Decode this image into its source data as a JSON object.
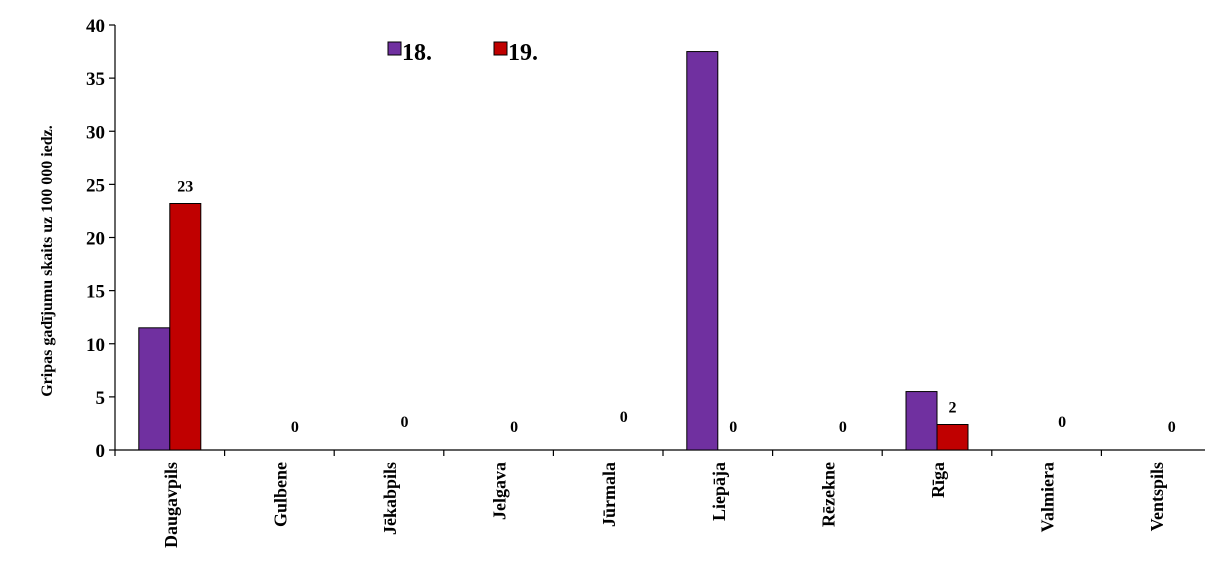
{
  "chart_data": {
    "type": "bar",
    "categories": [
      "Daugavpils",
      "Gulbene",
      "Jēkabpils",
      "Jelgava",
      "Jūrmala",
      "Liepāja",
      "Rēzekne",
      "Rīga",
      "Valmiera",
      "Ventspils"
    ],
    "series": [
      {
        "name": "18.",
        "color": "#7030a0",
        "values": [
          11.5,
          0,
          0,
          0,
          0,
          37.5,
          0,
          5.5,
          0,
          0
        ]
      },
      {
        "name": "19.",
        "color": "#c00000",
        "values": [
          23.2,
          0,
          0,
          0,
          0,
          0,
          0,
          2.4,
          0,
          0
        ]
      }
    ],
    "data_labels": [
      "23",
      "0",
      "0",
      "0",
      "0",
      "0",
      "0",
      "2",
      "0",
      "0"
    ],
    "ylabel": "Gripas gadījumu skaits uz 100 000 iedz.",
    "xlabel": "",
    "ylim": [
      0,
      40
    ],
    "yticks": [
      0,
      5,
      10,
      15,
      20,
      25,
      30,
      35,
      40
    ],
    "grid": false,
    "legend": "top-center"
  }
}
